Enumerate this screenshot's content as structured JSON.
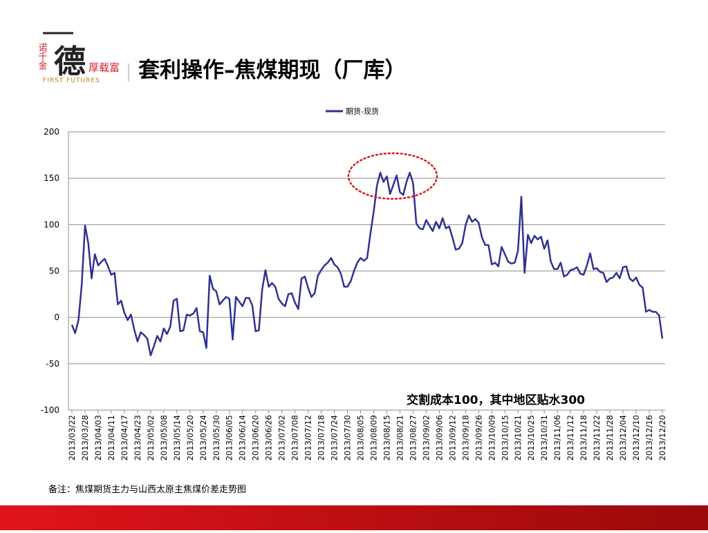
{
  "header": {
    "title": "套利操作–焦煤期现（厂库）",
    "logo_main": "德",
    "logo_left": "诺千金",
    "logo_right": "厚载富",
    "logo_en": "FIRST FUTURES"
  },
  "note": "备注：焦煤期货主力与山西太原主焦煤价差走势图",
  "chart_data": {
    "type": "line",
    "annotation": "交割成本100，其中地区贴水300",
    "categories": [
      "2013/03/22",
      null,
      null,
      null,
      "2013/03/28",
      null,
      null,
      null,
      "2013/04/03",
      null,
      null,
      null,
      "2013/04/11",
      null,
      null,
      null,
      "2013/04/17",
      null,
      null,
      null,
      "2013/04/23",
      null,
      null,
      null,
      "2013/05/02",
      null,
      null,
      null,
      "2013/05/08",
      null,
      null,
      null,
      "2013/05/14",
      null,
      null,
      null,
      "2013/05/20",
      null,
      null,
      null,
      "2013/05/24",
      null,
      null,
      null,
      "2013/05/30",
      null,
      null,
      null,
      "2013/06/05",
      null,
      null,
      null,
      "2013/06/14",
      null,
      null,
      null,
      "2013/06/20",
      null,
      null,
      null,
      "2013/06/26",
      null,
      null,
      null,
      "2013/07/02",
      null,
      null,
      null,
      "2013/07/08",
      null,
      null,
      null,
      "2013/07/12",
      null,
      null,
      null,
      "2013/07/18",
      null,
      null,
      null,
      "2013/07/24",
      null,
      null,
      null,
      "2013/07/30",
      null,
      null,
      null,
      "2013/08/05",
      null,
      null,
      null,
      "2013/08/09",
      null,
      null,
      null,
      "2013/08/15",
      null,
      null,
      null,
      "2013/08/21",
      null,
      null,
      null,
      "2013/08/27",
      null,
      null,
      null,
      "2013/09/02",
      null,
      null,
      null,
      "2013/09/06",
      null,
      null,
      null,
      "2013/09/12",
      null,
      null,
      null,
      "2013/09/18",
      null,
      null,
      null,
      "2013/09/26",
      null,
      null,
      null,
      "2013/10/09",
      null,
      null,
      null,
      "2013/10/15",
      null,
      null,
      null,
      "2013/10/21",
      null,
      null,
      null,
      "2013/10/25",
      null,
      null,
      null,
      "2013/10/31",
      null,
      null,
      null,
      "2013/11/06",
      null,
      null,
      null,
      "2013/11/12",
      null,
      null,
      null,
      "2013/11/18",
      null,
      null,
      null,
      "2013/11/22",
      null,
      null,
      null,
      "2013/11/28",
      null,
      null,
      null,
      "2013/12/04",
      null,
      null,
      null,
      "2013/12/10",
      null,
      null,
      null,
      "2013/12/16",
      null,
      null,
      null,
      "2013/12/20"
    ],
    "series": [
      {
        "name": "期货-现货",
        "color": "#2e3192",
        "values": [
          -8,
          -17,
          -3,
          35,
          99,
          80,
          42,
          68,
          56,
          60,
          63,
          55,
          46,
          48,
          14,
          18,
          5,
          -3,
          3,
          -13,
          -26,
          -16,
          -19,
          -23,
          -41,
          -31,
          -20,
          -26,
          -12,
          -18,
          -10,
          18,
          20,
          -15,
          -14,
          3,
          2,
          4,
          10,
          -15,
          -16,
          -33,
          45,
          31,
          28,
          14,
          18,
          22,
          20,
          -24,
          22,
          17,
          12,
          21,
          21,
          13,
          -15,
          -14,
          30,
          51,
          33,
          37,
          33,
          20,
          15,
          12,
          25,
          26,
          16,
          9,
          42,
          44,
          32,
          22,
          26,
          45,
          51,
          56,
          59,
          64,
          57,
          54,
          47,
          33,
          33,
          39,
          50,
          59,
          64,
          61,
          64,
          90,
          114,
          142,
          156,
          146,
          152,
          133,
          143,
          153,
          135,
          132,
          146,
          156,
          145,
          101,
          96,
          95,
          105,
          99,
          93,
          103,
          96,
          107,
          96,
          98,
          86,
          73,
          74,
          80,
          99,
          110,
          103,
          106,
          102,
          86,
          78,
          78,
          57,
          59,
          55,
          76,
          68,
          60,
          58,
          59,
          72,
          130,
          48,
          89,
          80,
          88,
          84,
          87,
          74,
          83,
          60,
          52,
          52,
          59,
          44,
          46,
          51,
          52,
          54,
          47,
          46,
          56,
          69,
          52,
          53,
          49,
          48,
          38,
          42,
          43,
          48,
          42,
          54,
          55,
          42,
          39,
          43,
          35,
          32,
          6,
          8,
          6,
          6,
          2,
          -23
        ]
      }
    ],
    "ylim": [
      -100,
      200
    ],
    "yticks": [
      -100,
      -50,
      0,
      50,
      100,
      150,
      200
    ],
    "grid": true,
    "legend": "top"
  }
}
